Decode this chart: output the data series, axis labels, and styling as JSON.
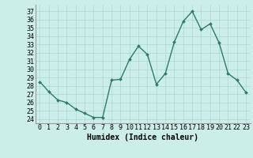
{
  "x": [
    0,
    1,
    2,
    3,
    4,
    5,
    6,
    7,
    8,
    9,
    10,
    11,
    12,
    13,
    14,
    15,
    16,
    17,
    18,
    19,
    20,
    21,
    22,
    23
  ],
  "y": [
    28.5,
    27.3,
    26.3,
    26.0,
    25.2,
    24.7,
    24.2,
    24.2,
    28.7,
    28.8,
    31.2,
    32.8,
    31.8,
    28.2,
    29.5,
    33.3,
    35.8,
    37.0,
    34.8,
    35.5,
    33.2,
    29.5,
    28.7,
    27.2
  ],
  "line_color": "#2d7a6e",
  "marker": "D",
  "marker_size": 2.0,
  "bg_color": "#cceee8",
  "grid_color": "#aad8d0",
  "ylabel_ticks": [
    24,
    25,
    26,
    27,
    28,
    29,
    30,
    31,
    32,
    33,
    34,
    35,
    36,
    37
  ],
  "xlabel": "Humidex (Indice chaleur)",
  "ylim": [
    23.5,
    37.8
  ],
  "xlim": [
    -0.5,
    23.5
  ],
  "xlabel_fontsize": 7,
  "tick_fontsize": 6,
  "line_width": 1.0
}
